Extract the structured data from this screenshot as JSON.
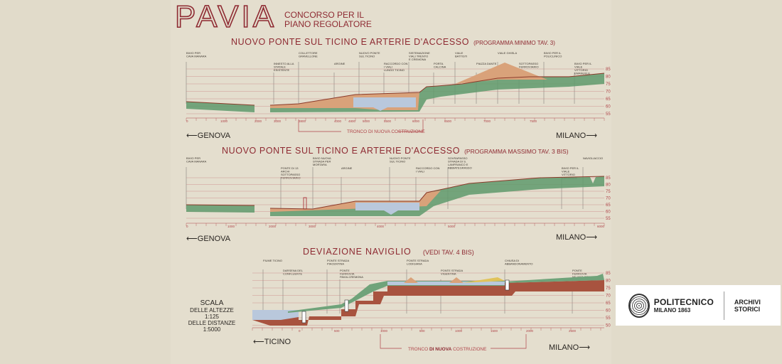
{
  "header": {
    "title": "PAVIA",
    "subtitle_line1": "CONCORSO PER IL",
    "subtitle_line2": "PIANO REGOLATORE"
  },
  "section1": {
    "title": "NUOVO PONTE SUL TICINO E ARTERIE D'ACCESSO",
    "note": "(PROGRAMMA MINIMO TAV. 3)",
    "labels": [
      "BIVIO PER CAVA MANARA",
      "INNESTO ALLA STATALE ESISTENTE",
      "COLLETTORE GRAVELLONE",
      "ARGINE",
      "NUOVO PONTE SUL TICINO",
      "RACCORDO CON I VIALI LUNGO TICINO",
      "SISTEMAZIONE VIALI TRENTO E CREMONA",
      "PORTA CALCINA",
      "VIALE BATTISTI",
      "PIAZZA DANTE",
      "VIALE GHISLA",
      "SOTTOPASSO FERROVIARIO",
      "BIVIO PER IL POLICLINICO",
      "BIVIO PER IL VIALE VITTORIO EMANUELE"
    ],
    "elev_ticks": [
      "85",
      "80",
      "75",
      "70",
      "65",
      "60",
      "55"
    ],
    "distances": [
      "0",
      "1000",
      "2000",
      "3000",
      "3800",
      "4000",
      "4800",
      "5000",
      "5500",
      "6000",
      "6500",
      "7000",
      "7500"
    ],
    "left_dir": "GENOVA",
    "right_dir": "MILANO",
    "segment_label": "TRONCO DI NUOVA COSTRUZIONE"
  },
  "section2": {
    "title": "NUOVO PONTE SUL TICINO E ARTERIE D'ACCESSO",
    "note": "(PROGRAMMA MASSIMO TAV. 3 BIS)",
    "labels": [
      "BIVIO PER CAVA MANARA",
      "PONTE DI 13 ARCHI SOTTOPASSO FERROVIARIO",
      "BIVIO NUOVA STRADA PER MORTARA",
      "ARGINE",
      "NUOVO PONTE SUL TICINO",
      "RACCORDO CON I VIALI",
      "SOVRAPASSO STRADA DI S. LANFRANCO E ABBIATEGRASSO",
      "BIVIO PER IL VIALE VITTORIO EMANUELE",
      "NAVIGLIACCIO"
    ],
    "elev_ticks": [
      "85",
      "80",
      "75",
      "70",
      "65",
      "60",
      "55"
    ],
    "distances": [
      "0",
      "1000",
      "2000",
      "3000",
      "4000",
      "5000",
      "6000"
    ],
    "left_dir": "GENOVA",
    "right_dir": "MILANO"
  },
  "section3": {
    "title": "DEVIAZIONE NAVIGLIO",
    "note": "(VEDI TAV. 4 BIS)",
    "labels": [
      "FIUME TICINO",
      "DARSENA DEL CONFLUENTE",
      "PONTE STRADA PIACENTINA",
      "PONTE FERROVIA PAVIA-CREMONA",
      "PONTE STRADA LODIGIANA",
      "PONTE STRADA VIGENTINA",
      "CHIUSA DI ABBANDONAMENTO",
      "PONTE FERROVIA MILANO-GENOVA"
    ],
    "elev_ticks": [
      "85",
      "80",
      "75",
      "70",
      "65",
      "60",
      "55",
      "50"
    ],
    "distances": [
      "0",
      "500",
      "1000",
      "500",
      "1000",
      "1500",
      "2000",
      "2500"
    ],
    "left_dir": "TICINO",
    "right_dir": "MILANO",
    "segment_label_a": "TRONCO",
    "segment_label_b": "DI NUOVA",
    "segment_label_c": "COSTRUZIONE"
  },
  "scale": {
    "title": "SCALA",
    "heights": "DELLE ALTEZZE",
    "heights_ratio": "1:125",
    "distances": "DELLE DISTANZE",
    "distances_ratio": "1:5000"
  },
  "logo": {
    "name": "POLITECNICO",
    "city": "MILANO 1863",
    "archive": "ARCHIVI STORICI"
  },
  "colors": {
    "ink_red": "#8e2a32",
    "earth": "#d9a27a",
    "grass": "#5f9a6c",
    "water": "#b9c8dc",
    "brick": "#a8533f"
  }
}
